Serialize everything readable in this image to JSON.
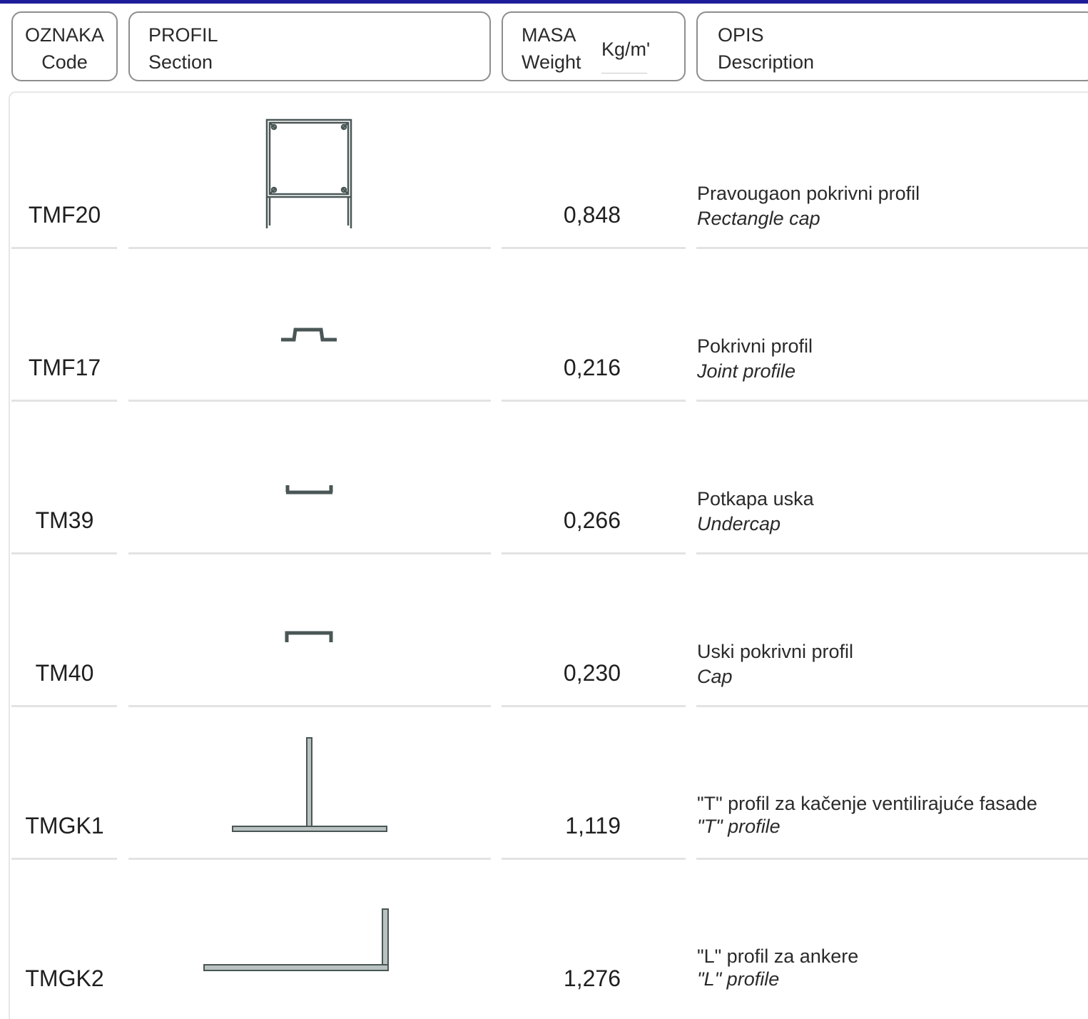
{
  "header": {
    "code_line1": "OZNAKA",
    "code_line2": "Code",
    "section_line1": "PROFIL",
    "section_line2": "Section",
    "mass_line1": "MASA",
    "mass_line2": "Weight",
    "mass_unit": "Kg/m'",
    "description_line1": "OPIS",
    "description_line2": "Description"
  },
  "rows": [
    {
      "code": "TMF20",
      "section_icon": "rectangle-cap-profile-icon",
      "mass": "0,848",
      "desc_local": "Pravougaon pokrivni profil",
      "desc_en": "Rectangle cap"
    },
    {
      "code": "TMF17",
      "section_icon": "joint-profile-icon",
      "mass": "0,216",
      "desc_local": "Pokrivni profil",
      "desc_en": "Joint profile"
    },
    {
      "code": "TM39",
      "section_icon": "undercap-profile-icon",
      "mass": "0,266",
      "desc_local": "Potkapa uska",
      "desc_en": "Undercap"
    },
    {
      "code": "TM40",
      "section_icon": "cap-profile-icon",
      "mass": "0,230",
      "desc_local": "Uski pokrivni profil",
      "desc_en": "Cap"
    },
    {
      "code": "TMGK1",
      "section_icon": "t-profile-icon",
      "mass": "1,119",
      "desc_local": "\"T\" profil za kačenje ventilirajuće fasade",
      "desc_en": "\"T\" profile"
    },
    {
      "code": "TMGK2",
      "section_icon": "l-profile-icon",
      "mass": "1,276",
      "desc_local": "\"L\" profil za ankere",
      "desc_en": "\"L\" profile"
    }
  ],
  "colors": {
    "top_bar": "#1d1d9a",
    "header_border": "#8e8e8e",
    "row_separator": "#e3e3e3",
    "profile_stroke": "#4a5656",
    "profile_fill": "#b9c1c1"
  }
}
